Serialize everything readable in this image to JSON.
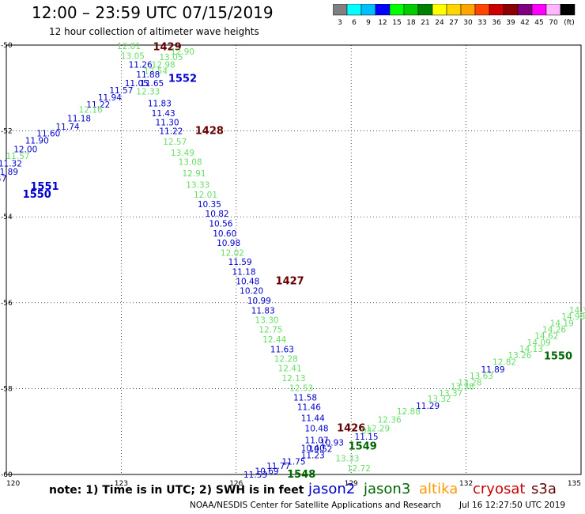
{
  "header": {
    "title": "12:00 – 23:59 UTC 07/15/2019",
    "subtitle": "12 hour collection of altimeter wave heights"
  },
  "colorbar": {
    "colors": [
      "#808080",
      "#00ffff",
      "#00bfff",
      "#0000ff",
      "#00ff00",
      "#00cc00",
      "#008000",
      "#ffff00",
      "#ffd700",
      "#ffa500",
      "#ff4500",
      "#cc0000",
      "#8b0000",
      "#800080",
      "#ff00ff",
      "#ffb6ff",
      "#000000"
    ],
    "labels": [
      "3",
      "6",
      "9",
      "12",
      "15",
      "18",
      "21",
      "24",
      "27",
      "30",
      "33",
      "36",
      "39",
      "42",
      "45",
      "70",
      "(ft)"
    ]
  },
  "map": {
    "lon_range": [
      120,
      135
    ],
    "lat_range": [
      -60,
      -50
    ],
    "lon_ticks": [
      "120",
      "123",
      "126",
      "129",
      "132",
      "135"
    ],
    "lat_ticks": [
      "-50",
      "-52",
      "-54",
      "-56",
      "-58",
      "-60"
    ],
    "lon_tick_values": [
      120,
      123,
      126,
      129,
      132,
      135
    ],
    "lat_tick_values": [
      -50,
      -52,
      -54,
      -56,
      -58,
      -60
    ],
    "grid": "dotted",
    "sat_colors": {
      "jason2": "#0000cc",
      "jason3": "#006600",
      "altika": "#ff9900",
      "cryosat": "#cc0000",
      "s3a": "#660000",
      "light": "#66dd66"
    },
    "labels": [
      {
        "t": "12.81",
        "lon": 123.2,
        "lat": -50.02,
        "c": "light"
      },
      {
        "t": "1429",
        "lon": 124.2,
        "lat": -50.05,
        "c": "s3a",
        "big": true
      },
      {
        "t": "12.90",
        "lon": 124.6,
        "lat": -50.15,
        "c": "light"
      },
      {
        "t": "13.05",
        "lon": 123.3,
        "lat": -50.25,
        "c": "light"
      },
      {
        "t": "13.05",
        "lon": 124.3,
        "lat": -50.28,
        "c": "light"
      },
      {
        "t": "11.26",
        "lon": 123.5,
        "lat": -50.45,
        "c": "jason2"
      },
      {
        "t": "12.98",
        "lon": 124.1,
        "lat": -50.45,
        "c": "light"
      },
      {
        "t": "12.54",
        "lon": 123.9,
        "lat": -50.6,
        "c": "light"
      },
      {
        "t": "11.88",
        "lon": 123.7,
        "lat": -50.68,
        "c": "jason2"
      },
      {
        "t": "1552",
        "lon": 124.6,
        "lat": -50.78,
        "c": "jason2",
        "big": true
      },
      {
        "t": "11.05",
        "lon": 123.4,
        "lat": -50.88,
        "c": "jason2"
      },
      {
        "t": "11.65",
        "lon": 123.8,
        "lat": -50.88,
        "c": "jason2"
      },
      {
        "t": "11.57",
        "lon": 123.0,
        "lat": -51.05,
        "c": "jason2"
      },
      {
        "t": "12.33",
        "lon": 123.7,
        "lat": -51.08,
        "c": "light"
      },
      {
        "t": "11.94",
        "lon": 122.7,
        "lat": -51.22,
        "c": "jason2"
      },
      {
        "t": "11.22",
        "lon": 122.4,
        "lat": -51.38,
        "c": "jason2"
      },
      {
        "t": "11.83",
        "lon": 124.0,
        "lat": -51.35,
        "c": "jason2"
      },
      {
        "t": "12.16",
        "lon": 122.2,
        "lat": -51.5,
        "c": "light"
      },
      {
        "t": "11.43",
        "lon": 124.1,
        "lat": -51.58,
        "c": "jason2"
      },
      {
        "t": "11.18",
        "lon": 121.9,
        "lat": -51.7,
        "c": "jason2"
      },
      {
        "t": "11.30",
        "lon": 124.2,
        "lat": -51.8,
        "c": "jason2"
      },
      {
        "t": "11.74",
        "lon": 121.6,
        "lat": -51.9,
        "c": "jason2"
      },
      {
        "t": "11.22",
        "lon": 124.3,
        "lat": -52.0,
        "c": "jason2"
      },
      {
        "t": "1428",
        "lon": 125.3,
        "lat": -52.0,
        "c": "s3a",
        "big": true
      },
      {
        "t": "11.60",
        "lon": 121.1,
        "lat": -52.05,
        "c": "jason2"
      },
      {
        "t": "11.90",
        "lon": 120.8,
        "lat": -52.22,
        "c": "jason2"
      },
      {
        "t": "12.57",
        "lon": 124.4,
        "lat": -52.25,
        "c": "light"
      },
      {
        "t": "12.00",
        "lon": 120.5,
        "lat": -52.42,
        "c": "jason2"
      },
      {
        "t": "13.49",
        "lon": 124.6,
        "lat": -52.5,
        "c": "light"
      },
      {
        "t": "11.57",
        "lon": 120.3,
        "lat": -52.58,
        "c": "light"
      },
      {
        "t": "11.32",
        "lon": 120.1,
        "lat": -52.75,
        "c": "jason2"
      },
      {
        "t": "13.08",
        "lon": 124.8,
        "lat": -52.72,
        "c": "light"
      },
      {
        "t": "11.89",
        "lon": 120.0,
        "lat": -52.95,
        "c": "jason2"
      },
      {
        "t": "12.91",
        "lon": 124.9,
        "lat": -52.98,
        "c": "light"
      },
      {
        "t": "11.47",
        "lon": 119.7,
        "lat": -53.1,
        "c": "jason2"
      },
      {
        "t": "12.21",
        "lon": 119.3,
        "lat": -53.3,
        "c": "light"
      },
      {
        "t": "1551",
        "lon": 121.0,
        "lat": -53.3,
        "c": "jason2",
        "big": true
      },
      {
        "t": "13.33",
        "lon": 125.0,
        "lat": -53.25,
        "c": "light"
      },
      {
        "t": "12.38",
        "lon": 119.0,
        "lat": -53.48,
        "c": "light"
      },
      {
        "t": "1550",
        "lon": 120.8,
        "lat": -53.48,
        "c": "jason2",
        "big": true
      },
      {
        "t": "12.01",
        "lon": 125.2,
        "lat": -53.48,
        "c": "light"
      },
      {
        "t": "10.35",
        "lon": 125.3,
        "lat": -53.7,
        "c": "jason2"
      },
      {
        "t": "10.82",
        "lon": 125.5,
        "lat": -53.92,
        "c": "jason2"
      },
      {
        "t": "10.56",
        "lon": 125.6,
        "lat": -54.15,
        "c": "jason2"
      },
      {
        "t": "10.60",
        "lon": 125.7,
        "lat": -54.38,
        "c": "jason2"
      },
      {
        "t": "10.98",
        "lon": 125.8,
        "lat": -54.6,
        "c": "jason2"
      },
      {
        "t": "12.02",
        "lon": 125.9,
        "lat": -54.83,
        "c": "light"
      },
      {
        "t": "11.59",
        "lon": 126.1,
        "lat": -55.05,
        "c": "jason2"
      },
      {
        "t": "11.18",
        "lon": 126.2,
        "lat": -55.28,
        "c": "jason2"
      },
      {
        "t": "10.48",
        "lon": 126.3,
        "lat": -55.5,
        "c": "jason2"
      },
      {
        "t": "1427",
        "lon": 127.4,
        "lat": -55.5,
        "c": "s3a",
        "big": true
      },
      {
        "t": "10.20",
        "lon": 126.4,
        "lat": -55.72,
        "c": "jason2"
      },
      {
        "t": "10.99",
        "lon": 126.6,
        "lat": -55.95,
        "c": "jason2"
      },
      {
        "t": "11.83",
        "lon": 126.7,
        "lat": -56.18,
        "c": "jason2"
      },
      {
        "t": "13.30",
        "lon": 126.8,
        "lat": -56.4,
        "c": "light"
      },
      {
        "t": "12.75",
        "lon": 126.9,
        "lat": -56.62,
        "c": "light"
      },
      {
        "t": "12.44",
        "lon": 127.0,
        "lat": -56.85,
        "c": "light"
      },
      {
        "t": "11.63",
        "lon": 127.2,
        "lat": -57.08,
        "c": "jason2"
      },
      {
        "t": "12.28",
        "lon": 127.3,
        "lat": -57.3,
        "c": "light"
      },
      {
        "t": "12.41",
        "lon": 127.4,
        "lat": -57.52,
        "c": "light"
      },
      {
        "t": "12.13",
        "lon": 127.5,
        "lat": -57.75,
        "c": "light"
      },
      {
        "t": "12.53",
        "lon": 127.7,
        "lat": -57.98,
        "c": "light"
      },
      {
        "t": "11.58",
        "lon": 127.8,
        "lat": -58.2,
        "c": "jason2"
      },
      {
        "t": "11.46",
        "lon": 127.9,
        "lat": -58.43,
        "c": "jason2"
      },
      {
        "t": "11.44",
        "lon": 128.0,
        "lat": -58.68,
        "c": "jason2"
      },
      {
        "t": "10.48",
        "lon": 128.1,
        "lat": -58.92,
        "c": "jason2"
      },
      {
        "t": "1426",
        "lon": 129.0,
        "lat": -58.92,
        "c": "s3a",
        "big": true
      },
      {
        "t": "03",
        "lon": 129.4,
        "lat": -58.98,
        "c": "light"
      },
      {
        "t": "11.15",
        "lon": 129.4,
        "lat": -59.12,
        "c": "jason2"
      },
      {
        "t": "11.07",
        "lon": 128.1,
        "lat": -59.2,
        "c": "jason2"
      },
      {
        "t": "10.93",
        "lon": 128.5,
        "lat": -59.25,
        "c": "jason2"
      },
      {
        "t": "12.29",
        "lon": 129.7,
        "lat": -58.92,
        "c": "light"
      },
      {
        "t": "12.36",
        "lon": 130.0,
        "lat": -58.72,
        "c": "light"
      },
      {
        "t": "1549",
        "lon": 129.3,
        "lat": -59.35,
        "c": "jason3",
        "big": true
      },
      {
        "t": "10.40",
        "lon": 128.0,
        "lat": -59.38,
        "c": "jason2"
      },
      {
        "t": "10.52",
        "lon": 128.2,
        "lat": -59.4,
        "c": "jason2"
      },
      {
        "t": "11.23",
        "lon": 128.0,
        "lat": -59.55,
        "c": "jason2"
      },
      {
        "t": "13.33",
        "lon": 128.9,
        "lat": -59.62,
        "c": "light"
      },
      {
        "t": "11.75",
        "lon": 127.5,
        "lat": -59.7,
        "c": "jason2"
      },
      {
        "t": "11.77",
        "lon": 127.1,
        "lat": -59.8,
        "c": "jason2"
      },
      {
        "t": "12.72",
        "lon": 129.2,
        "lat": -59.85,
        "c": "light"
      },
      {
        "t": "10.69",
        "lon": 126.8,
        "lat": -59.92,
        "c": "jason2"
      },
      {
        "t": "11.53",
        "lon": 126.5,
        "lat": -60.0,
        "c": "jason2"
      },
      {
        "t": "1548",
        "lon": 127.7,
        "lat": -60.0,
        "c": "jason3",
        "big": true
      },
      {
        "t": "12.88",
        "lon": 130.5,
        "lat": -58.53,
        "c": "light"
      },
      {
        "t": "11.29",
        "lon": 131.0,
        "lat": -58.4,
        "c": "jason2"
      },
      {
        "t": "13.32",
        "lon": 131.3,
        "lat": -58.23,
        "c": "light"
      },
      {
        "t": "13.37",
        "lon": 131.6,
        "lat": -58.1,
        "c": "light"
      },
      {
        "t": "13.38",
        "lon": 131.9,
        "lat": -57.95,
        "c": "light"
      },
      {
        "t": "13.28",
        "lon": 132.1,
        "lat": -57.85,
        "c": "light"
      },
      {
        "t": "13.63",
        "lon": 132.4,
        "lat": -57.7,
        "c": "light"
      },
      {
        "t": "11.89",
        "lon": 132.7,
        "lat": -57.55,
        "c": "jason2"
      },
      {
        "t": "12.82",
        "lon": 133.0,
        "lat": -57.38,
        "c": "light"
      },
      {
        "t": "13.26",
        "lon": 133.4,
        "lat": -57.22,
        "c": "light"
      },
      {
        "t": "1550",
        "lon": 134.4,
        "lat": -57.25,
        "c": "jason3",
        "big": true
      },
      {
        "t": "14.13",
        "lon": 133.7,
        "lat": -57.07,
        "c": "light"
      },
      {
        "t": "14.09",
        "lon": 133.9,
        "lat": -56.92,
        "c": "light"
      },
      {
        "t": "14.62",
        "lon": 134.1,
        "lat": -56.77,
        "c": "light"
      },
      {
        "t": "14.26",
        "lon": 134.3,
        "lat": -56.62,
        "c": "light"
      },
      {
        "t": "14.19",
        "lon": 134.5,
        "lat": -56.47,
        "c": "light"
      },
      {
        "t": "14.98",
        "lon": 134.8,
        "lat": -56.32,
        "c": "light"
      },
      {
        "t": "14.33",
        "lon": 135.0,
        "lat": -56.17,
        "c": "light"
      }
    ]
  },
  "legend": {
    "note": "note: 1) Time is in UTC; 2) SWH is in feet",
    "sats": [
      {
        "name": "jason2",
        "color": "#0000cc"
      },
      {
        "name": "jason3",
        "color": "#006600"
      },
      {
        "name": "altika",
        "color": "#ff9900"
      },
      {
        "name": "cryosat",
        "color": "#cc0000"
      },
      {
        "name": "s3a",
        "color": "#660000"
      }
    ]
  },
  "footer": {
    "credit": "NOAA/NESDIS Center for Satellite Applications and Research",
    "created": "Jul 16 12:27:50 UTC 2019"
  }
}
